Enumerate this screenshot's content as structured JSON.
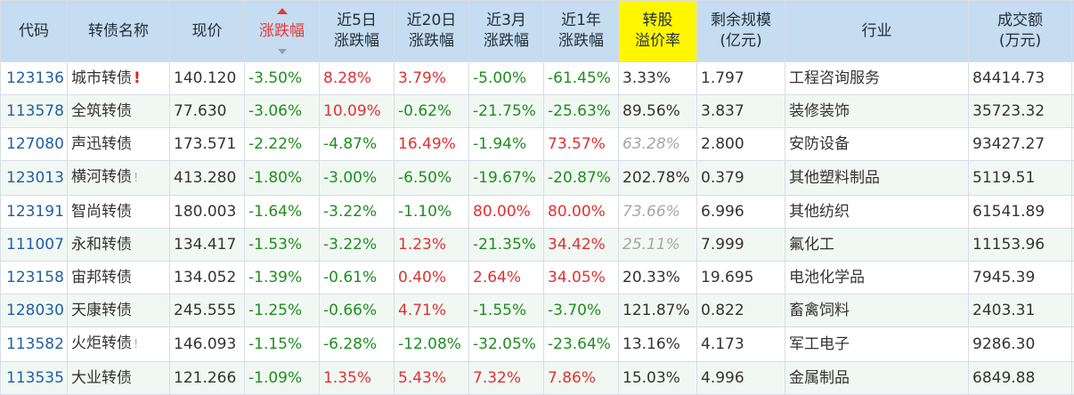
{
  "headers": {
    "code": "代码",
    "name": "转债名称",
    "price": "现价",
    "change": "涨跌幅",
    "chg5d_l1": "近5日",
    "chg5d_l2": "涨跌幅",
    "chg20d_l1": "近20日",
    "chg20d_l2": "涨跌幅",
    "chg3m_l1": "近3月",
    "chg3m_l2": "涨跌幅",
    "chg1y_l1": "近1年",
    "chg1y_l2": "涨跌幅",
    "premium_l1": "转股",
    "premium_l2": "溢价率",
    "size_l1": "剩余规模",
    "size_l2": "(亿元)",
    "industry": "行业",
    "volume_l1": "成交额",
    "volume_l2": "(万元)"
  },
  "colors": {
    "header_bg": "#c6dcf0",
    "highlight_header": "#fff600",
    "up": "#e03131",
    "down": "#1e8e1e",
    "code_link": "#1f5fa5"
  },
  "rows": [
    {
      "code": "123136",
      "name": "城市转债",
      "mark": "!",
      "price": "140.120",
      "change": "-3.50%",
      "chg5d": "8.28%",
      "chg20d": "3.79%",
      "chg3m": "-5.00%",
      "chg1y": "-61.45%",
      "premium": "3.33%",
      "size": "1.797",
      "industry": "工程咨询服务",
      "volume": "84414.73"
    },
    {
      "code": "113578",
      "name": "全筑转债",
      "mark": "",
      "price": "77.630",
      "change": "-3.06%",
      "chg5d": "10.09%",
      "chg20d": "-0.62%",
      "chg3m": "-21.75%",
      "chg1y": "-25.63%",
      "premium": "89.56%",
      "size": "3.837",
      "industry": "装修装饰",
      "volume": "35723.32"
    },
    {
      "code": "127080",
      "name": "声迅转债",
      "mark": "",
      "price": "173.571",
      "change": "-2.22%",
      "chg5d": "-4.87%",
      "chg20d": "16.49%",
      "chg3m": "-1.94%",
      "chg1y": "73.57%",
      "premium": "63.28%",
      "size": "2.800",
      "industry": "安防设备",
      "volume": "93427.27"
    },
    {
      "code": "123013",
      "name": "横河转债",
      "mark": "!",
      "price": "413.280",
      "change": "-1.80%",
      "chg5d": "-3.00%",
      "chg20d": "-6.50%",
      "chg3m": "-19.67%",
      "chg1y": "-20.87%",
      "premium": "202.78%",
      "size": "0.379",
      "industry": "其他塑料制品",
      "volume": "5119.51"
    },
    {
      "code": "123191",
      "name": "智尚转债",
      "mark": "",
      "price": "180.003",
      "change": "-1.64%",
      "chg5d": "-3.22%",
      "chg20d": "-1.10%",
      "chg3m": "80.00%",
      "chg1y": "80.00%",
      "premium": "73.66%",
      "size": "6.996",
      "industry": "其他纺织",
      "volume": "61541.89"
    },
    {
      "code": "111007",
      "name": "永和转债",
      "mark": "",
      "price": "134.417",
      "change": "-1.53%",
      "chg5d": "-3.22%",
      "chg20d": "1.23%",
      "chg3m": "-21.35%",
      "chg1y": "34.42%",
      "premium": "25.11%",
      "size": "7.999",
      "industry": "氟化工",
      "volume": "11153.96"
    },
    {
      "code": "123158",
      "name": "宙邦转债",
      "mark": "",
      "price": "134.052",
      "change": "-1.39%",
      "chg5d": "-0.61%",
      "chg20d": "0.40%",
      "chg3m": "2.64%",
      "chg1y": "34.05%",
      "premium": "20.33%",
      "size": "19.695",
      "industry": "电池化学品",
      "volume": "7945.39"
    },
    {
      "code": "128030",
      "name": "天康转债",
      "mark": "",
      "price": "245.555",
      "change": "-1.25%",
      "chg5d": "-0.66%",
      "chg20d": "4.71%",
      "chg3m": "-1.55%",
      "chg1y": "-3.70%",
      "premium": "121.87%",
      "size": "0.822",
      "industry": "畜禽饲料",
      "volume": "2403.31"
    },
    {
      "code": "113582",
      "name": "火炬转债",
      "mark": "!",
      "price": "146.093",
      "change": "-1.15%",
      "chg5d": "-6.28%",
      "chg20d": "-12.08%",
      "chg3m": "-32.05%",
      "chg1y": "-23.64%",
      "premium": "13.16%",
      "size": "4.173",
      "industry": "军工电子",
      "volume": "9286.30"
    },
    {
      "code": "113535",
      "name": "大业转债",
      "mark": "",
      "price": "121.266",
      "change": "-1.09%",
      "chg5d": "1.35%",
      "chg20d": "5.43%",
      "chg3m": "7.32%",
      "chg1y": "7.86%",
      "premium": "15.03%",
      "size": "4.996",
      "industry": "金属制品",
      "volume": "6849.88"
    }
  ]
}
